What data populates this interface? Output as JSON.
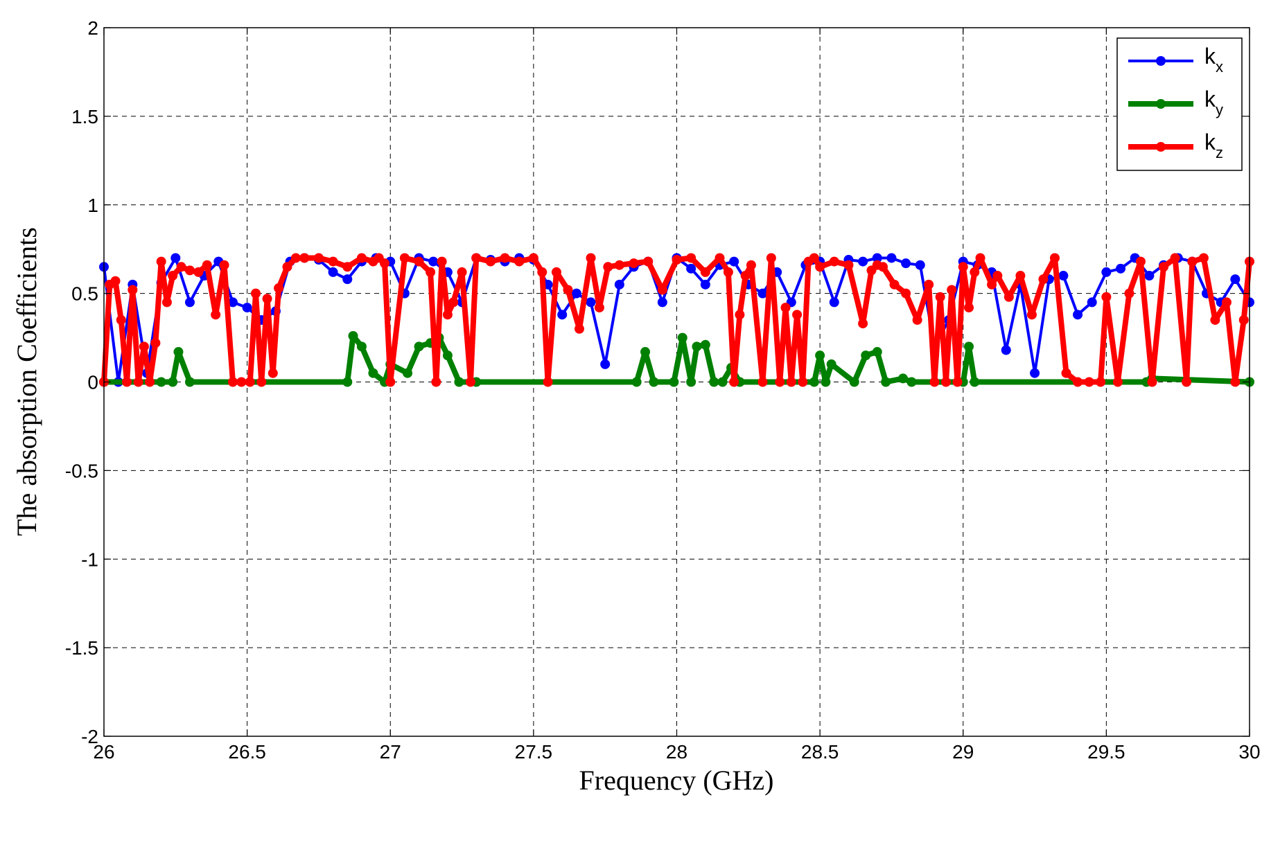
{
  "chart_data": {
    "type": "line",
    "title": "",
    "xlabel": "Frequency (GHz)",
    "ylabel": "The absorption Coefficients",
    "xlim": [
      26,
      30
    ],
    "ylim": [
      -2,
      2
    ],
    "xticks": [
      26,
      26.5,
      27,
      27.5,
      28,
      28.5,
      29,
      29.5,
      30
    ],
    "xtick_labels": [
      "26",
      "26.5",
      "27",
      "27.5",
      "28",
      "28.5",
      "29",
      "29.5",
      "30"
    ],
    "yticks": [
      -2,
      -1.5,
      -1,
      -0.5,
      0,
      0.5,
      1,
      1.5,
      2
    ],
    "ytick_labels": [
      "-2",
      "-1.5",
      "-1",
      "-0.5",
      "0",
      "0.5",
      "1",
      "1.5",
      "2"
    ],
    "grid": true,
    "legend_position": "top-right",
    "series": [
      {
        "name": "k_x",
        "base": "k",
        "sub": "x",
        "color": "#0000ff",
        "x": [
          26,
          26.05,
          26.1,
          26.15,
          26.2,
          26.25,
          26.3,
          26.35,
          26.4,
          26.45,
          26.5,
          26.55,
          26.6,
          26.65,
          26.7,
          26.75,
          26.8,
          26.85,
          26.9,
          26.95,
          27,
          27.05,
          27.1,
          27.15,
          27.2,
          27.25,
          27.3,
          27.35,
          27.4,
          27.45,
          27.5,
          27.55,
          27.6,
          27.65,
          27.7,
          27.75,
          27.8,
          27.85,
          27.9,
          27.95,
          28,
          28.05,
          28.1,
          28.15,
          28.2,
          28.25,
          28.3,
          28.35,
          28.4,
          28.45,
          28.5,
          28.55,
          28.6,
          28.65,
          28.7,
          28.75,
          28.8,
          28.85,
          28.9,
          28.95,
          29,
          29.05,
          29.1,
          29.15,
          29.2,
          29.25,
          29.3,
          29.35,
          29.4,
          29.45,
          29.5,
          29.55,
          29.6,
          29.65,
          29.7,
          29.75,
          29.8,
          29.85,
          29.9,
          29.95,
          30
        ],
        "y": [
          0.65,
          0.0,
          0.55,
          0.05,
          0.56,
          0.7,
          0.45,
          0.6,
          0.68,
          0.45,
          0.42,
          0.35,
          0.4,
          0.68,
          0.7,
          0.69,
          0.62,
          0.58,
          0.68,
          0.7,
          0.68,
          0.5,
          0.7,
          0.68,
          0.62,
          0.45,
          0.7,
          0.69,
          0.68,
          0.7,
          0.69,
          0.55,
          0.38,
          0.5,
          0.45,
          0.1,
          0.55,
          0.65,
          0.68,
          0.45,
          0.7,
          0.64,
          0.55,
          0.66,
          0.68,
          0.55,
          0.5,
          0.62,
          0.45,
          0.66,
          0.68,
          0.45,
          0.69,
          0.68,
          0.7,
          0.7,
          0.67,
          0.66,
          0.2,
          0.35,
          0.68,
          0.66,
          0.62,
          0.18,
          0.55,
          0.05,
          0.58,
          0.6,
          0.38,
          0.45,
          0.62,
          0.64,
          0.7,
          0.6,
          0.66,
          0.7,
          0.68,
          0.5,
          0.45,
          0.58,
          0.45
        ]
      },
      {
        "name": "k_y",
        "base": "k",
        "sub": "y",
        "color": "#008000",
        "x": [
          26,
          26.2,
          26.24,
          26.26,
          26.3,
          26.85,
          26.87,
          26.9,
          26.94,
          26.98,
          27,
          27.06,
          27.1,
          27.14,
          27.17,
          27.2,
          27.24,
          27.3,
          27.86,
          27.89,
          27.92,
          27.99,
          28.02,
          28.05,
          28.07,
          28.1,
          28.13,
          28.16,
          28.19,
          28.22,
          28.48,
          28.5,
          28.52,
          28.54,
          28.62,
          28.66,
          28.7,
          28.73,
          28.79,
          28.82,
          29.0,
          29.02,
          29.04,
          29.64,
          29.66,
          30
        ],
        "y": [
          0,
          0,
          0,
          0.17,
          0,
          0,
          0.26,
          0.2,
          0.05,
          0,
          0.1,
          0.05,
          0.2,
          0.22,
          0.25,
          0.15,
          0,
          0,
          0,
          0.17,
          0,
          0,
          0.25,
          0,
          0.2,
          0.21,
          0,
          0,
          0.08,
          0,
          0,
          0.15,
          0,
          0.1,
          0,
          0.15,
          0.17,
          0,
          0.02,
          0,
          0,
          0.2,
          0,
          0,
          0.02,
          0
        ]
      },
      {
        "name": "k_z",
        "base": "k",
        "sub": "z",
        "color": "#ff0000",
        "x": [
          26,
          26.02,
          26.04,
          26.06,
          26.08,
          26.1,
          26.12,
          26.14,
          26.16,
          26.18,
          26.2,
          26.22,
          26.24,
          26.27,
          26.3,
          26.33,
          26.36,
          26.39,
          26.42,
          26.45,
          26.48,
          26.51,
          26.53,
          26.55,
          26.57,
          26.59,
          26.61,
          26.64,
          26.67,
          26.7,
          26.75,
          26.8,
          26.85,
          26.9,
          26.94,
          26.96,
          26.98,
          27.0,
          27.05,
          27.1,
          27.14,
          27.16,
          27.18,
          27.2,
          27.22,
          27.25,
          27.28,
          27.3,
          27.35,
          27.4,
          27.45,
          27.5,
          27.53,
          27.55,
          27.58,
          27.62,
          27.66,
          27.7,
          27.73,
          27.76,
          27.8,
          27.85,
          27.9,
          27.95,
          28.0,
          28.05,
          28.1,
          28.15,
          28.18,
          28.2,
          28.22,
          28.24,
          28.26,
          28.3,
          28.33,
          28.36,
          28.38,
          28.4,
          28.42,
          28.44,
          28.46,
          28.48,
          28.5,
          28.55,
          28.6,
          28.65,
          28.68,
          28.7,
          28.72,
          28.76,
          28.8,
          28.84,
          28.88,
          28.9,
          28.92,
          28.94,
          28.96,
          28.98,
          29.0,
          29.02,
          29.04,
          29.06,
          29.1,
          29.12,
          29.16,
          29.2,
          29.24,
          29.28,
          29.32,
          29.36,
          29.4,
          29.44,
          29.48,
          29.5,
          29.54,
          29.58,
          29.62,
          29.66,
          29.7,
          29.74,
          29.78,
          29.8,
          29.84,
          29.88,
          29.92,
          29.95,
          29.98,
          30.0
        ],
        "y": [
          0,
          0.55,
          0.57,
          0.35,
          0,
          0.52,
          0,
          0.2,
          0,
          0.22,
          0.68,
          0.45,
          0.6,
          0.65,
          0.63,
          0.62,
          0.66,
          0.38,
          0.66,
          0,
          0,
          0,
          0.5,
          0,
          0.47,
          0.05,
          0.53,
          0.65,
          0.7,
          0.7,
          0.7,
          0.68,
          0.65,
          0.7,
          0.68,
          0.7,
          0.67,
          0,
          0.7,
          0.68,
          0.62,
          0,
          0.68,
          0.38,
          0.45,
          0.62,
          0,
          0.7,
          0.68,
          0.7,
          0.68,
          0.7,
          0.62,
          0,
          0.62,
          0.52,
          0.3,
          0.7,
          0.42,
          0.65,
          0.66,
          0.67,
          0.68,
          0.52,
          0.69,
          0.7,
          0.62,
          0.7,
          0.62,
          0,
          0.38,
          0.6,
          0.66,
          0,
          0.7,
          0,
          0.42,
          0,
          0.38,
          0,
          0.68,
          0.7,
          0.65,
          0.68,
          0.66,
          0.33,
          0.63,
          0.66,
          0.65,
          0.55,
          0.5,
          0.35,
          0.55,
          0,
          0.48,
          0,
          0.52,
          0,
          0.65,
          0.42,
          0.62,
          0.7,
          0.55,
          0.6,
          0.48,
          0.6,
          0.38,
          0.58,
          0.7,
          0.05,
          0,
          0,
          0,
          0.48,
          0,
          0.5,
          0.68,
          0,
          0.65,
          0.7,
          0,
          0.68,
          0.7,
          0.35,
          0.45,
          0,
          0.35,
          0.68
        ]
      }
    ]
  }
}
